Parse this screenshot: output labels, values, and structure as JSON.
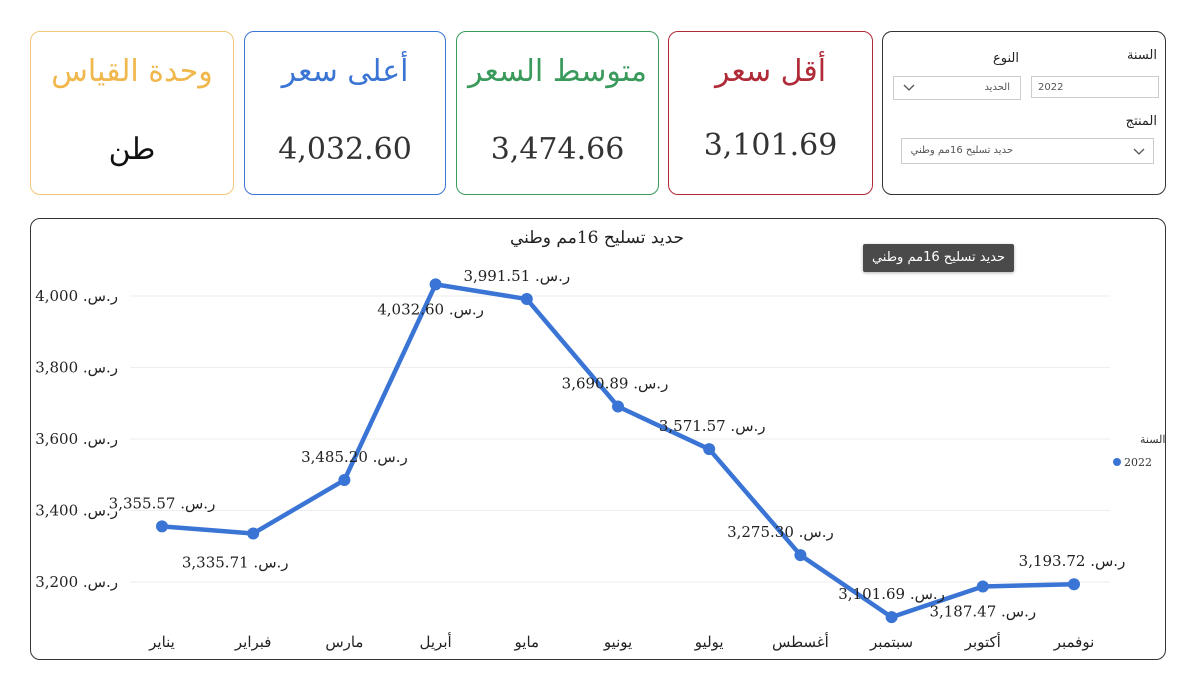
{
  "kpis": [
    {
      "title": "وحدة القياس",
      "value": "طن",
      "color": "#f0b74d"
    },
    {
      "title": "أعلى سعر",
      "value": "4,032.60",
      "color": "#3a74d4"
    },
    {
      "title": "متوسط السعر",
      "value": "3,474.66",
      "color": "#3a9a5b"
    },
    {
      "title": "أقل سعر",
      "value": "3,101.69",
      "color": "#b02a37"
    }
  ],
  "filters": {
    "year_label": "السنة",
    "year_value": "2022",
    "type_label": "النوع",
    "type_value": "الحديد",
    "product_label": "المنتج",
    "product_value": "حديد تسليح 16مم وطني"
  },
  "tooltip": "حديد تسليح 16مم وطني",
  "chart_data": {
    "type": "line",
    "title": "حديد تسليح 16مم وطني",
    "categories": [
      "يناير",
      "فبراير",
      "مارس",
      "أبريل",
      "مايو",
      "يونيو",
      "يوليو",
      "أغسطس",
      "سبتمبر",
      "أكتوبر",
      "نوفمبر"
    ],
    "series": [
      {
        "name": "2022",
        "color": "#3a74d4",
        "values": [
          3355.57,
          3335.71,
          3485.2,
          4032.6,
          3991.51,
          3690.89,
          3571.57,
          3275.3,
          3101.69,
          3187.47,
          3193.72
        ]
      }
    ],
    "data_labels": [
      "3,355.57 .ر.س",
      "3,335.71 .ر.س",
      "3,485.20 .ر.س",
      "4,032.60 .ر.س",
      "3,991.51 .ر.س",
      "3,690.89 .ر.س",
      "3,571.57 .ر.س",
      "3,275.30 .ر.س",
      "3,101.69 .ر.س",
      "3,187.47 .ر.س",
      "3,193.72 .ر.س"
    ],
    "y_ticks": [
      3200,
      3400,
      3600,
      3800,
      4000
    ],
    "y_tick_labels": [
      "3,200 .ر.س",
      "3,400 .ر.س",
      "3,600 .ر.س",
      "3,800 .ر.س",
      "4,000 .ر.س"
    ],
    "ylim": [
      3100,
      4050
    ],
    "grid": true,
    "legend": {
      "title": "السنة",
      "entries": [
        "2022"
      ],
      "placement": "right"
    }
  }
}
